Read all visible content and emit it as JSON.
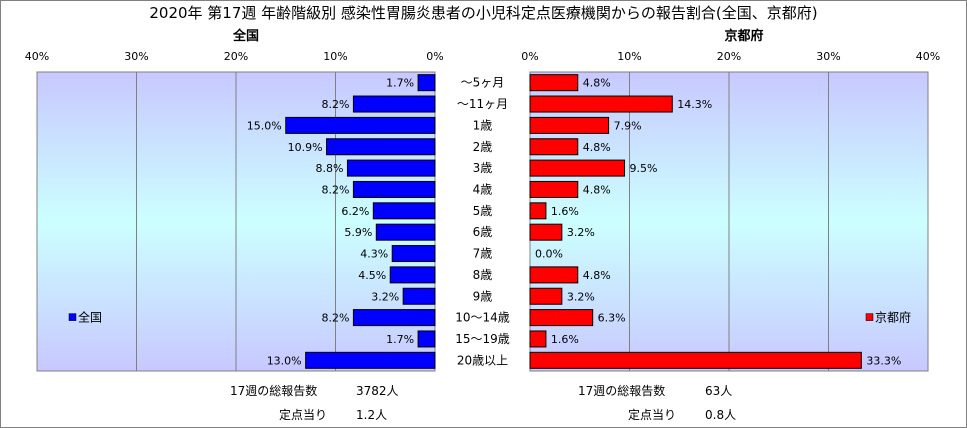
{
  "chart_data": [
    {
      "type": "bar",
      "title": "全国",
      "orientation": "horizontal",
      "direction": "right-to-left",
      "categories": [
        "～5ヶ月",
        "～11ヶ月",
        "1歳",
        "2歳",
        "3歳",
        "4歳",
        "5歳",
        "6歳",
        "7歳",
        "8歳",
        "9歳",
        "10～14歳",
        "15～19歳",
        "20歳以上"
      ],
      "values": [
        1.7,
        8.2,
        15.0,
        10.9,
        8.8,
        8.2,
        6.2,
        5.9,
        4.3,
        4.5,
        3.2,
        8.2,
        1.7,
        13.0
      ],
      "value_labels": [
        "1.7%",
        "8.2%",
        "15.0%",
        "10.9%",
        "8.8%",
        "8.2%",
        "6.2%",
        "5.9%",
        "4.3%",
        "4.5%",
        "3.2%",
        "8.2%",
        "1.7%",
        "13.0%"
      ],
      "xlim": [
        0,
        40
      ],
      "ticks": [
        "0%",
        "10%",
        "20%",
        "30%",
        "40%"
      ],
      "series": [
        {
          "name": "全国",
          "color": "#0000ff"
        }
      ],
      "legend": "bottom-left",
      "grid": true
    },
    {
      "type": "bar",
      "title": "京都府",
      "orientation": "horizontal",
      "direction": "left-to-right",
      "categories": [
        "～5ヶ月",
        "～11ヶ月",
        "1歳",
        "2歳",
        "3歳",
        "4歳",
        "5歳",
        "6歳",
        "7歳",
        "8歳",
        "9歳",
        "10～14歳",
        "15～19歳",
        "20歳以上"
      ],
      "values": [
        4.8,
        14.3,
        7.9,
        4.8,
        9.5,
        4.8,
        1.6,
        3.2,
        0.0,
        4.8,
        3.2,
        6.3,
        1.6,
        33.3
      ],
      "value_labels": [
        "4.8%",
        "14.3%",
        "7.9%",
        "4.8%",
        "9.5%",
        "4.8%",
        "1.6%",
        "3.2%",
        "0.0%",
        "4.8%",
        "3.2%",
        "6.3%",
        "1.6%",
        "33.3%"
      ],
      "xlim": [
        0,
        40
      ],
      "ticks": [
        "0%",
        "10%",
        "20%",
        "30%",
        "40%"
      ],
      "series": [
        {
          "name": "京都府",
          "color": "#ff0000"
        }
      ],
      "legend": "bottom-right",
      "grid": true
    }
  ],
  "title": "2020年 第17週 年齢階級別 感染性胃腸炎患者の小児科定点医療機関からの報告割合(全国、京都府)",
  "footer": {
    "national_reports_label": "17週の総報告数",
    "national_reports_value": "3782人",
    "national_per_site_label": "定点当り",
    "national_per_site_value": "1.2人",
    "kyoto_reports_label": "17週の総報告数",
    "kyoto_reports_value": "63人",
    "kyoto_per_site_label": "定点当り",
    "kyoto_per_site_value": "0.8人"
  },
  "colors": {
    "national_bar": "#0000ff",
    "kyoto_bar": "#ff0000",
    "plot_top": "#c8c8ff",
    "plot_mid": "#ccffff",
    "plot_bottom": "#c8c8ff"
  }
}
